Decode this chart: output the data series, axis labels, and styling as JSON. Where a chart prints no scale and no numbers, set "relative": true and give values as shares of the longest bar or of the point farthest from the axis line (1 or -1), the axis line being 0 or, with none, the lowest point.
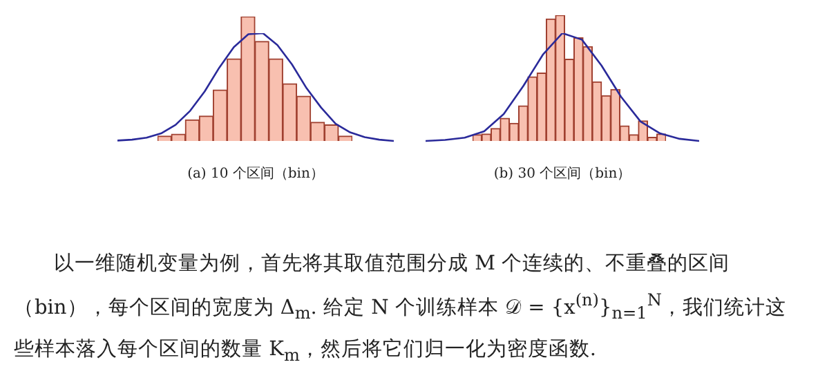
{
  "chart_data": [
    {
      "type": "bar",
      "relative": true,
      "categories": [
        null,
        null,
        null,
        null,
        null,
        null,
        null,
        null,
        null,
        null,
        null,
        null,
        null,
        null
      ],
      "series": [
        {
          "color": "#f8c0b0",
          "values": [
            0.04,
            0.055,
            0.17,
            0.2,
            0.41,
            0.66,
            1,
            0.8,
            0.66,
            0.46,
            0.36,
            0.15,
            0.13,
            0.04
          ]
        }
      ]
    },
    {
      "type": "line",
      "relative": true,
      "xlabel": "(a) 10 个区间（bin）",
      "categories": [
        null,
        null,
        null,
        null,
        null,
        null,
        null,
        null,
        null,
        null,
        null,
        null,
        null,
        null,
        null,
        null,
        null,
        null,
        null,
        null
      ],
      "series": [
        {
          "color": "#2a2a9a",
          "values": [
            0.004,
            0.012,
            0.03,
            0.07,
            0.15,
            0.28,
            0.46,
            0.68,
            0.87,
            0.99,
            1,
            0.89,
            0.71,
            0.49,
            0.31,
            0.16,
            0.08,
            0.035,
            0.012,
            0
          ]
        }
      ]
    },
    {
      "type": "bar",
      "relative": true,
      "categories": [
        null,
        null,
        null,
        null,
        null,
        null,
        null,
        null,
        null,
        null,
        null,
        null,
        null,
        null,
        null,
        null,
        null,
        null,
        null,
        null,
        null
      ],
      "series": [
        {
          "color": "#f8c0b0",
          "values": [
            0.05,
            0.055,
            0.1,
            0.18,
            0.14,
            0.28,
            0.51,
            0.54,
            0.97,
            1,
            0.65,
            0.82,
            0.75,
            0.47,
            0.36,
            0.41,
            0.12,
            0.05,
            0.16,
            0.03,
            0.055
          ]
        }
      ]
    },
    {
      "type": "line",
      "relative": true,
      "xlabel": "(b) 30 个区间（bin）",
      "categories": [
        null,
        null,
        null,
        null,
        null,
        null,
        null,
        null,
        null,
        null,
        null,
        null,
        null,
        null,
        null
      ],
      "series": [
        {
          "color": "#2a2a9a",
          "values": [
            0,
            0.01,
            0.03,
            0.09,
            0.25,
            0.51,
            0.8,
            1,
            0.94,
            0.7,
            0.41,
            0.18,
            0.07,
            0.02,
            0
          ]
        }
      ]
    },
    {
      "type": "other",
      "annotations": [
        "以一维随机变量为例，首先将其取值范围分成 M 个连续的、不重叠的区间（bin），每个区间的宽度为 Δ$_{m}$. 给定 N 个训练样本 𝒟 = {x$^{(n)}$}$_{n=1}$$^{N}$，我们统计这些样本落入每个区间的数量 K$_{m}$，然后将它们归一化为密度函数."
      ]
    }
  ]
}
